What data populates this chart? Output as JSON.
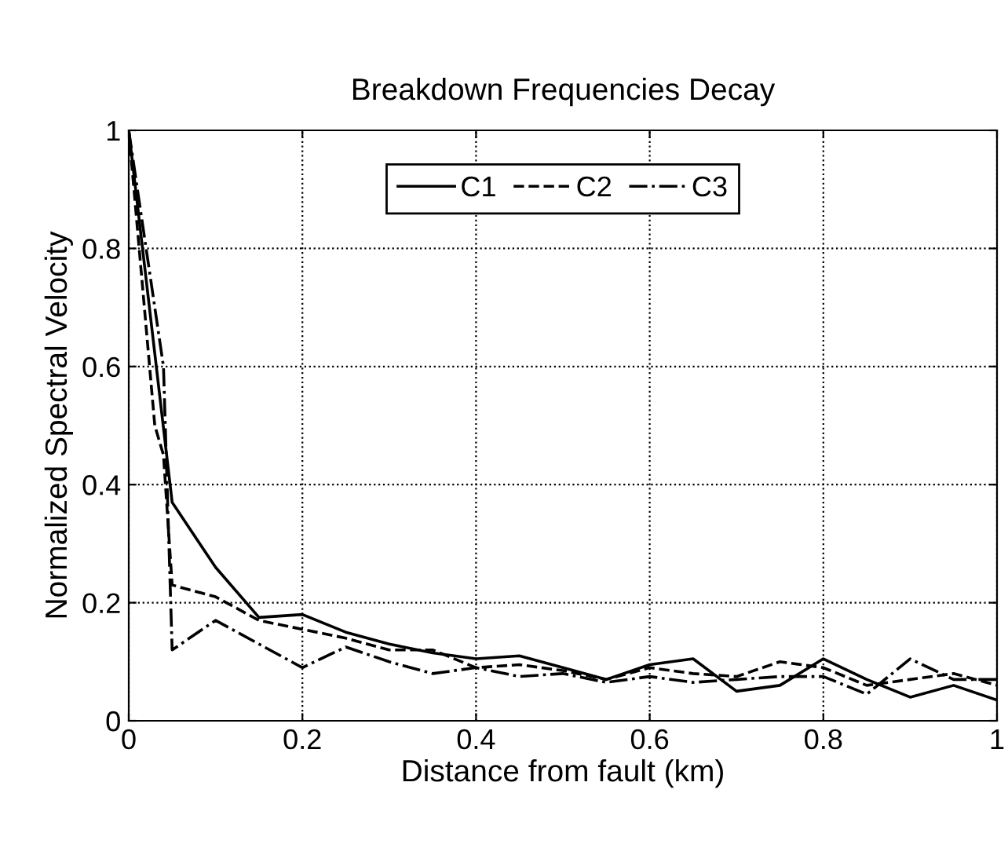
{
  "chart_data": {
    "type": "line",
    "title": "Breakdown Frequencies Decay",
    "xlabel": "Distance from fault (km)",
    "ylabel": "Normalized Spectral Velocity",
    "xlim": [
      0,
      1
    ],
    "ylim": [
      0,
      1
    ],
    "xticks": [
      0,
      0.2,
      0.4,
      0.6,
      0.8,
      1
    ],
    "yticks": [
      0,
      0.2,
      0.4,
      0.6,
      0.8,
      1
    ],
    "grid": true,
    "legend": "top",
    "series": [
      {
        "name": "C1",
        "color": "#000000",
        "line_style": "solid",
        "x": [
          0,
          0.05,
          0.1,
          0.15,
          0.2,
          0.25,
          0.3,
          0.35,
          0.4,
          0.45,
          0.5,
          0.55,
          0.6,
          0.65,
          0.7,
          0.75,
          0.8,
          0.85,
          0.9,
          0.95,
          1
        ],
        "values": [
          1,
          0.37,
          0.26,
          0.175,
          0.18,
          0.15,
          0.13,
          0.115,
          0.105,
          0.11,
          0.09,
          0.07,
          0.095,
          0.105,
          0.05,
          0.06,
          0.105,
          0.07,
          0.04,
          0.06,
          0.035
        ]
      },
      {
        "name": "C2",
        "color": "#000000",
        "line_style": "dashed",
        "x": [
          0,
          0.03,
          0.04,
          0.05,
          0.1,
          0.15,
          0.2,
          0.25,
          0.3,
          0.35,
          0.4,
          0.45,
          0.5,
          0.55,
          0.6,
          0.65,
          0.7,
          0.75,
          0.8,
          0.85,
          0.9,
          0.95,
          1
        ],
        "values": [
          1,
          0.5,
          0.45,
          0.23,
          0.21,
          0.17,
          0.155,
          0.14,
          0.12,
          0.12,
          0.09,
          0.095,
          0.085,
          0.07,
          0.09,
          0.08,
          0.075,
          0.1,
          0.09,
          0.06,
          0.07,
          0.08,
          0.06
        ]
      },
      {
        "name": "C3",
        "color": "#000000",
        "line_style": "dashdot",
        "x": [
          0,
          0.04,
          0.05,
          0.1,
          0.15,
          0.2,
          0.25,
          0.3,
          0.35,
          0.4,
          0.45,
          0.5,
          0.55,
          0.6,
          0.65,
          0.7,
          0.75,
          0.8,
          0.85,
          0.9,
          0.95,
          1
        ],
        "values": [
          1,
          0.6,
          0.12,
          0.17,
          0.13,
          0.09,
          0.125,
          0.1,
          0.08,
          0.09,
          0.075,
          0.08,
          0.065,
          0.075,
          0.065,
          0.07,
          0.075,
          0.075,
          0.045,
          0.105,
          0.07,
          0.07
        ]
      }
    ]
  }
}
